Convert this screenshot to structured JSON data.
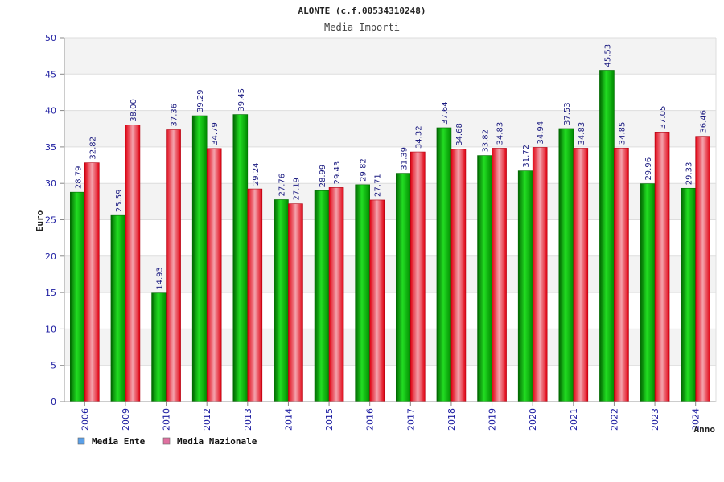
{
  "chart_data": {
    "type": "bar",
    "title": "ALONTE (c.f.00534310248)",
    "subtitle": "Media Importi",
    "ylabel": "Euro",
    "xlabel": "Anno",
    "ylim": [
      0,
      50
    ],
    "yticks": [
      0,
      5,
      10,
      15,
      20,
      25,
      30,
      35,
      40,
      45,
      50
    ],
    "categories": [
      "2006",
      "2009",
      "2010",
      "2012",
      "2013",
      "2014",
      "2015",
      "2016",
      "2017",
      "2018",
      "2019",
      "2020",
      "2021",
      "2022",
      "2023",
      "2024"
    ],
    "series": [
      {
        "name": "Media Ente",
        "color": "#00c000",
        "values": [
          28.79,
          25.59,
          14.93,
          39.29,
          39.45,
          27.76,
          28.99,
          29.82,
          31.39,
          37.64,
          33.82,
          31.72,
          37.53,
          45.53,
          29.96,
          29.33
        ],
        "labels": [
          "28.79",
          "25.59",
          "14.93",
          "39.29",
          "39.45",
          "27.76",
          "28.99",
          "29.82",
          "31.39",
          "37.64",
          "33.82",
          "31.72",
          "37.53",
          "45.53",
          "29.96",
          "29.33"
        ]
      },
      {
        "name": "Media Nazionale",
        "color": "#e0202a",
        "values": [
          32.82,
          38.0,
          37.36,
          34.79,
          29.24,
          27.19,
          29.43,
          27.71,
          34.32,
          34.68,
          34.83,
          34.94,
          34.83,
          34.85,
          37.05,
          36.46
        ],
        "labels": [
          "32.82",
          "38.00",
          "37.36",
          "34.79",
          "29.24",
          "27.19",
          "29.43",
          "27.71",
          "34.32",
          "34.68",
          "34.83",
          "34.94",
          "34.83",
          "34.85",
          "37.05",
          "36.46"
        ]
      }
    ],
    "legend": {
      "position": "bottom-left",
      "items": [
        {
          "label": "Media Ente",
          "color": "#5aa0e8"
        },
        {
          "label": "Media Nazionale",
          "color": "#e070a0"
        }
      ]
    },
    "grid": true,
    "band_colors": [
      "#f3f3f3",
      "#ffffff"
    ]
  }
}
